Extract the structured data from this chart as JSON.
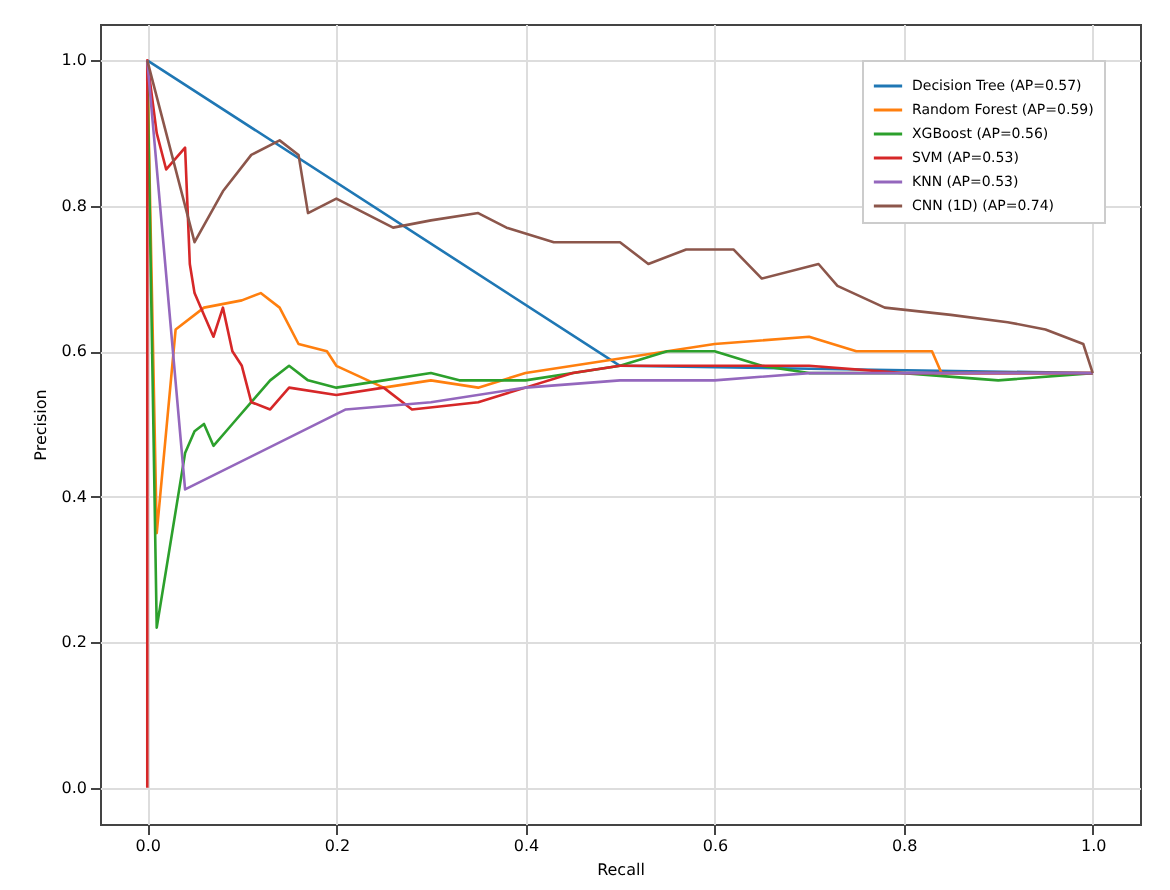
{
  "chart_data": {
    "type": "line",
    "xlabel": "Recall",
    "ylabel": "Precision",
    "xlim": [
      -0.05,
      1.05
    ],
    "ylim": [
      -0.05,
      1.05
    ],
    "xticks": [
      {
        "value": 0,
        "label": "0.0"
      },
      {
        "value": 0.2,
        "label": "0.2"
      },
      {
        "value": 0.4,
        "label": "0.4"
      },
      {
        "value": 0.6,
        "label": "0.6"
      },
      {
        "value": 0.8,
        "label": "0.8"
      },
      {
        "value": 1,
        "label": "1.0"
      }
    ],
    "yticks": [
      {
        "value": 0,
        "label": "0.0"
      },
      {
        "value": 0.2,
        "label": "0.2"
      },
      {
        "value": 0.4,
        "label": "0.4"
      },
      {
        "value": 0.6,
        "label": "0.6"
      },
      {
        "value": 0.8,
        "label": "0.8"
      },
      {
        "value": 1,
        "label": "1.0"
      }
    ],
    "grid": true,
    "legend": "top right",
    "line_style": "solid",
    "series": [
      {
        "name": "Decision Tree (AP=0.57)",
        "color": "#1f77b4",
        "x": [
          0,
          0.5,
          1
        ],
        "values": [
          1,
          0.58,
          0.57
        ]
      },
      {
        "name": "Random Forest (AP=0.59)",
        "color": "#ff7f0e",
        "x": [
          0,
          0.01,
          0.03,
          0.06,
          0.1,
          0.12,
          0.14,
          0.16,
          0.19,
          0.2,
          0.25,
          0.3,
          0.35,
          0.4,
          0.45,
          0.5,
          0.6,
          0.7,
          0.75,
          0.83,
          0.84,
          1
        ],
        "values": [
          1,
          0.35,
          0.63,
          0.66,
          0.67,
          0.68,
          0.66,
          0.61,
          0.6,
          0.58,
          0.55,
          0.56,
          0.55,
          0.57,
          0.58,
          0.59,
          0.61,
          0.62,
          0.6,
          0.6,
          0.57,
          0.57
        ]
      },
      {
        "name": "XGBoost (AP=0.56)",
        "color": "#2ca02c",
        "x": [
          0,
          0.01,
          0.02,
          0.04,
          0.05,
          0.06,
          0.07,
          0.09,
          0.11,
          0.13,
          0.15,
          0.17,
          0.2,
          0.25,
          0.3,
          0.33,
          0.4,
          0.5,
          0.55,
          0.6,
          0.65,
          0.7,
          0.8,
          0.9,
          1
        ],
        "values": [
          1,
          0.22,
          0.3,
          0.46,
          0.49,
          0.5,
          0.47,
          0.5,
          0.53,
          0.56,
          0.58,
          0.56,
          0.55,
          0.56,
          0.57,
          0.56,
          0.56,
          0.58,
          0.6,
          0.6,
          0.58,
          0.57,
          0.57,
          0.56,
          0.57
        ]
      },
      {
        "name": "SVM (AP=0.53)",
        "color": "#d62728",
        "x": [
          0,
          0,
          0.01,
          0.02,
          0.04,
          0.045,
          0.05,
          0.06,
          0.07,
          0.08,
          0.09,
          0.1,
          0.11,
          0.13,
          0.15,
          0.2,
          0.25,
          0.28,
          0.35,
          0.45,
          0.5,
          0.6,
          0.7,
          0.8,
          0.9,
          1
        ],
        "values": [
          0,
          1,
          0.9,
          0.85,
          0.88,
          0.72,
          0.68,
          0.65,
          0.62,
          0.66,
          0.6,
          0.58,
          0.53,
          0.52,
          0.55,
          0.54,
          0.55,
          0.52,
          0.53,
          0.57,
          0.58,
          0.58,
          0.58,
          0.57,
          0.57,
          0.57
        ]
      },
      {
        "name": "KNN (AP=0.53)",
        "color": "#9467bd",
        "x": [
          0,
          0.04,
          0.21,
          0.3,
          0.4,
          0.5,
          0.6,
          0.7,
          0.8,
          1
        ],
        "values": [
          1,
          0.41,
          0.52,
          0.53,
          0.55,
          0.56,
          0.56,
          0.57,
          0.57,
          0.57
        ]
      },
      {
        "name": "CNN (1D) (AP=0.74)",
        "color": "#8c564b",
        "x": [
          0,
          0.05,
          0.08,
          0.11,
          0.14,
          0.16,
          0.17,
          0.2,
          0.23,
          0.26,
          0.3,
          0.35,
          0.38,
          0.43,
          0.46,
          0.5,
          0.53,
          0.57,
          0.62,
          0.65,
          0.71,
          0.73,
          0.78,
          0.85,
          0.91,
          0.95,
          0.99,
          1
        ],
        "values": [
          1,
          0.75,
          0.82,
          0.87,
          0.89,
          0.87,
          0.79,
          0.81,
          0.79,
          0.77,
          0.78,
          0.79,
          0.77,
          0.75,
          0.75,
          0.75,
          0.72,
          0.74,
          0.74,
          0.7,
          0.72,
          0.69,
          0.66,
          0.65,
          0.64,
          0.63,
          0.61,
          0.57
        ]
      }
    ]
  }
}
